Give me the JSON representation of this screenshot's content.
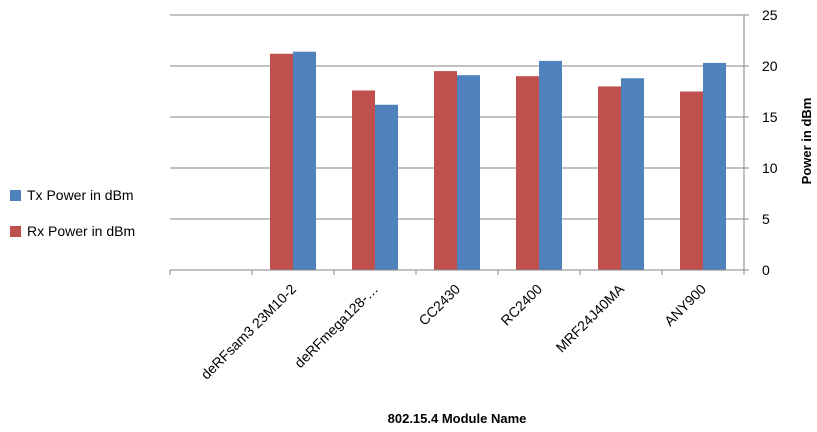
{
  "chart_data": {
    "type": "bar",
    "categories": [
      "",
      "deRFsam3 23M10-2",
      "deRFmega128-…",
      "CC2430",
      "RC2400",
      "MRF24J40MA",
      "ANY900"
    ],
    "series": [
      {
        "name": "Rx Power in dBm",
        "color": "#C0504D",
        "values": [
          null,
          21.2,
          17.6,
          19.5,
          19.0,
          18.0,
          17.5
        ]
      },
      {
        "name": "Tx Power in dBm",
        "color": "#4F81BD",
        "values": [
          null,
          21.4,
          16.2,
          19.1,
          20.5,
          18.8,
          20.3
        ]
      }
    ],
    "xlabel": "802.15.4 Module Name",
    "ylabel": "Power in dBm",
    "ylim": [
      0,
      25
    ],
    "yticks": [
      0,
      5,
      10,
      15,
      20,
      25
    ],
    "y_axis_side": "right",
    "grid": true,
    "legend_position": "left"
  }
}
